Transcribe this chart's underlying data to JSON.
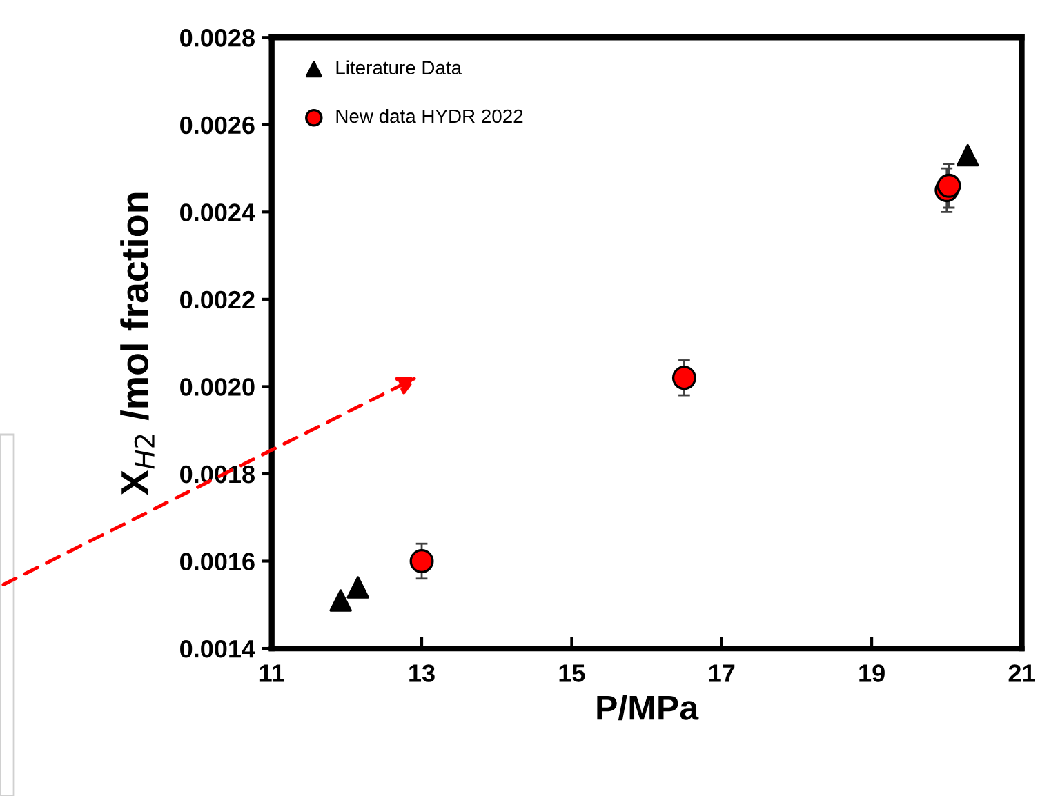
{
  "chart_data": {
    "type": "scatter",
    "xlabel": "P/MPa",
    "ylabel": "X$_{H2}$ /mol fraction",
    "xlim": [
      11,
      21
    ],
    "xticks": [
      11,
      13,
      15,
      17,
      19,
      21
    ],
    "ylim": [
      0.0014,
      0.0028
    ],
    "yticks": [
      {
        "value": 0.0014,
        "label": "0.0014"
      },
      {
        "value": 0.0016,
        "label": "0.0016"
      },
      {
        "value": 0.0018,
        "label": "0.0018"
      },
      {
        "value": 0.002,
        "label": "0.0020"
      },
      {
        "value": 0.0022,
        "label": "0.0022"
      },
      {
        "value": 0.0024,
        "label": "0.0024"
      },
      {
        "value": 0.0026,
        "label": "0.0026"
      },
      {
        "value": 0.0028,
        "label": "0.0028"
      }
    ],
    "grid": false,
    "legend": "top left",
    "series": [
      {
        "name": "Literature Data",
        "color": "#000000",
        "marker": "triangle",
        "x": [
          11.92,
          12.15,
          20.28
        ],
        "values": [
          0.00151,
          0.00154,
          0.00253
        ]
      },
      {
        "name": "New data HYDR 2022",
        "color": "#ff0000",
        "marker": "circle",
        "x": [
          13.0,
          16.5,
          20.0,
          20.03
        ],
        "values": [
          0.0016,
          0.00202,
          0.00245,
          0.00246
        ],
        "errors": [
          4e-05,
          4e-05,
          5e-05,
          5e-05
        ]
      }
    ]
  }
}
